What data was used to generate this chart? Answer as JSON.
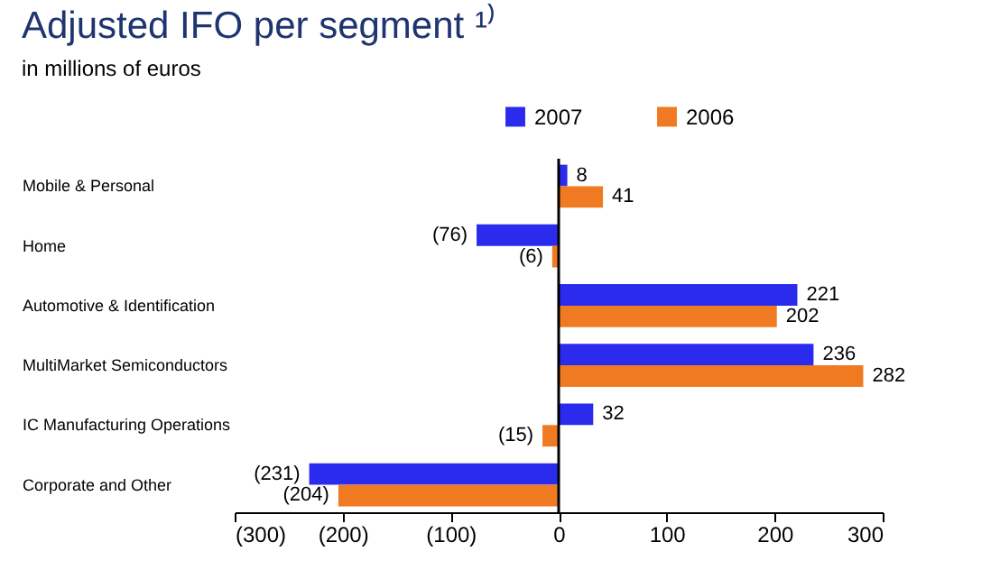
{
  "chart_data": {
    "type": "bar",
    "orientation": "horizontal",
    "title": "Adjusted IFO per segment ¹⁾",
    "subtitle": "in millions of euros",
    "categories": [
      "Mobile & Personal",
      "Home",
      "Automotive & Identification",
      "MultiMarket Semiconductors",
      "IC Manufacturing Operations",
      "Corporate and Other"
    ],
    "series": [
      {
        "name": "2007",
        "color": "#2b2bee",
        "values": [
          8,
          -76,
          221,
          236,
          32,
          -231
        ],
        "value_labels": [
          "8",
          "(76)",
          "221",
          "236",
          "32",
          "(231)"
        ]
      },
      {
        "name": "2006",
        "color": "#f07a22",
        "values": [
          41,
          -6,
          202,
          282,
          -15,
          -204
        ],
        "value_labels": [
          "41",
          "(6)",
          "202",
          "282",
          "(15)",
          "(204)"
        ]
      }
    ],
    "xlim": [
      -300,
      300
    ],
    "xticks": [
      {
        "value": -300,
        "label": "(300)"
      },
      {
        "value": -200,
        "label": "(200)"
      },
      {
        "value": -100,
        "label": "(100)"
      },
      0,
      100,
      200,
      300
    ],
    "ref_lines": [
      {
        "axis": "x",
        "value": 0,
        "label": null,
        "color": "#000000"
      }
    ],
    "grid": false,
    "legend": "top right"
  }
}
